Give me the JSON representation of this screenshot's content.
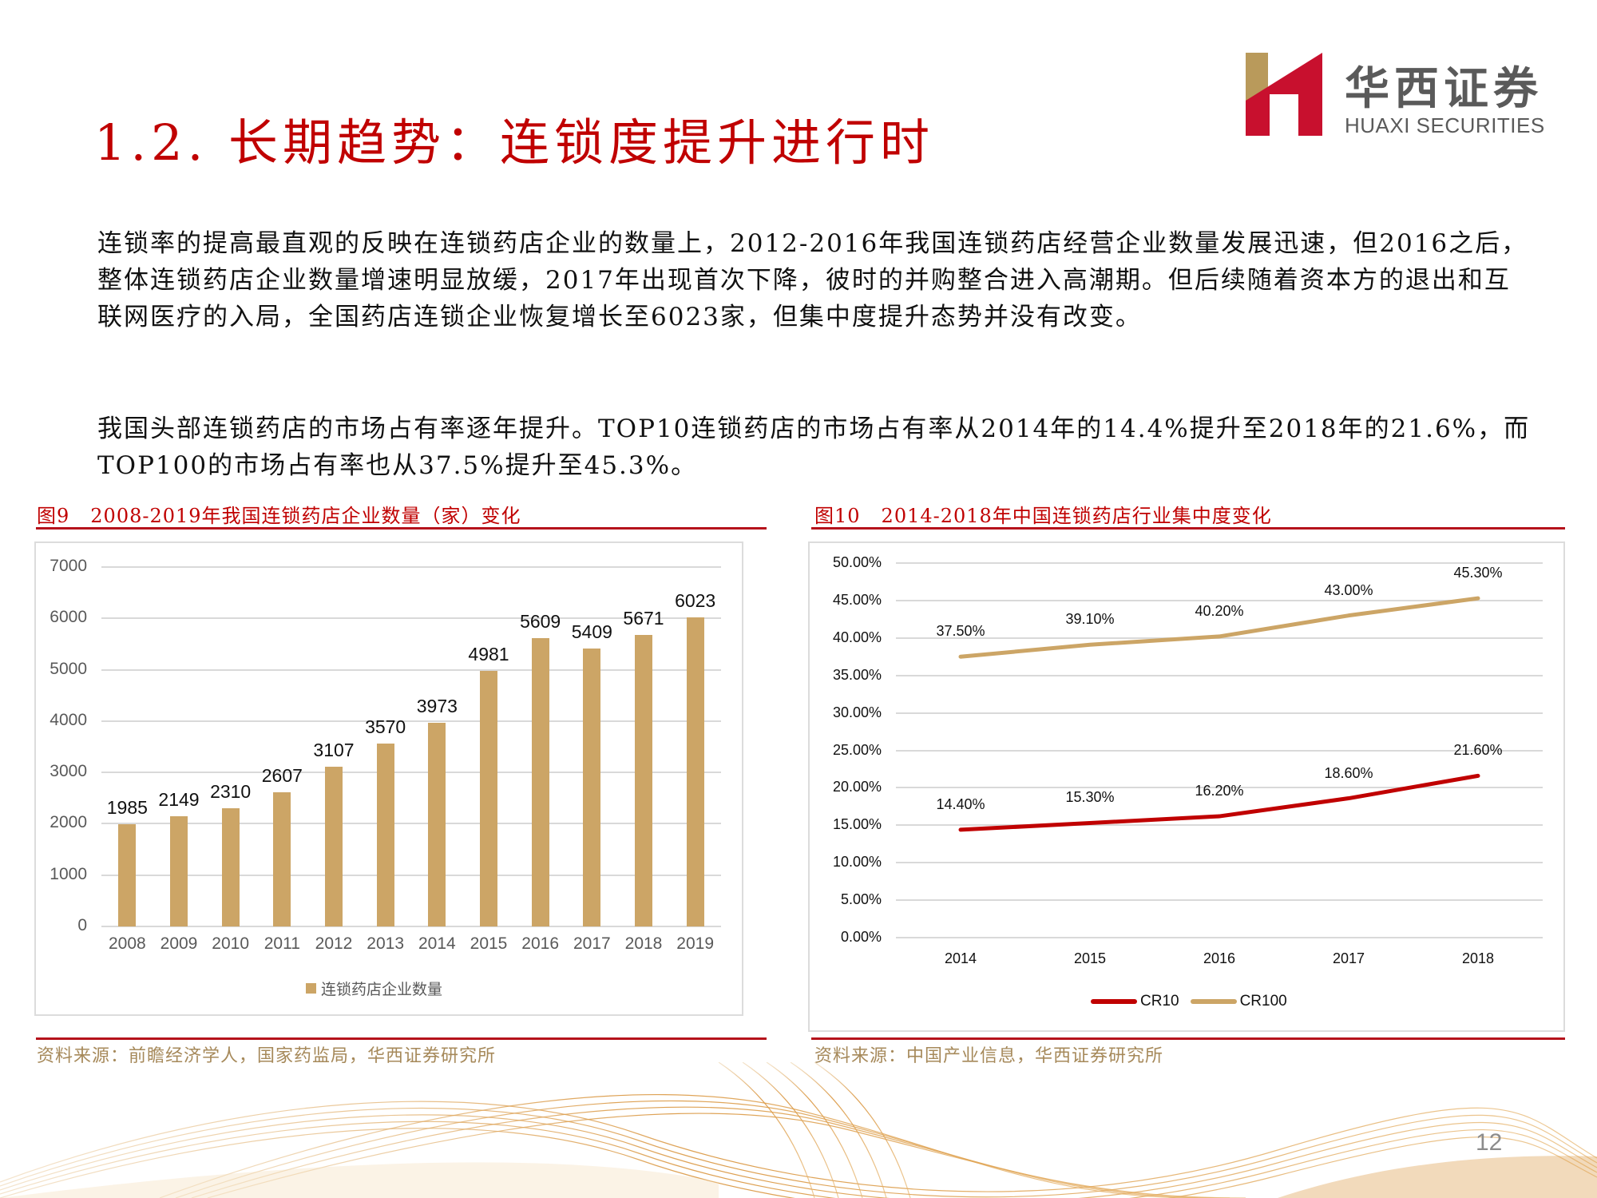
{
  "slide": {
    "title": "1.2. 长期趋势：连锁度提升进行时",
    "page_number": "12"
  },
  "logo": {
    "name_cn": "华西证券",
    "name_en": "HUAXI SECURITIES",
    "colors": {
      "gold": "#B99A5B",
      "red": "#C8102E",
      "text": "#5A5A5A"
    }
  },
  "body": {
    "paragraph_1": "连锁率的提高最直观的反映在连锁药店企业的数量上，2012-2016年我国连锁药店经营企业数量发展迅速，但2016之后，整体连锁药店企业数量增速明显放缓，2017年出现首次下降，彼时的并购整合进入高潮期。但后续随着资本方的退出和互联网医疗的入局，全国药店连锁企业恢复增长至6023家，但集中度提升态势并没有改变。",
    "paragraph_2": "我国头部连锁药店的市场占有率逐年提升。TOP10连锁药店的市场占有率从2014年的14.4%提升至2018年的21.6%，而TOP100的市场占有率也从37.5%提升至45.3%。"
  },
  "figures": [
    {
      "number": "图9",
      "title": "2008-2019年我国连锁药店企业数量（家）变化",
      "source": "资料来源：前瞻经济学人，国家药监局，华西证券研究所"
    },
    {
      "number": "图10",
      "title": "2014-2018年中国连锁药店行业集中度变化",
      "source": "资料来源：中国产业信息，华西证券研究所"
    }
  ],
  "colors": {
    "accent_red": "#C00000",
    "rule_red": "#B5121B",
    "bar_gold": "#CCA566",
    "cr10_red": "#C00000",
    "cr100_gold": "#CCA566",
    "source_text": "#A6895A",
    "grid": "#D9D9D9"
  },
  "chart_data": [
    {
      "type": "bar",
      "title": "2008-2019年我国连锁药店企业数量（家）变化",
      "categories": [
        "2008",
        "2009",
        "2010",
        "2011",
        "2012",
        "2013",
        "2014",
        "2015",
        "2016",
        "2017",
        "2018",
        "2019"
      ],
      "series": [
        {
          "name": "连锁药店企业数量",
          "values": [
            1985,
            2149,
            2310,
            2607,
            3107,
            3570,
            3973,
            4981,
            5609,
            5409,
            5671,
            6023
          ]
        }
      ],
      "y_ticks": [
        "0",
        "1000",
        "2000",
        "3000",
        "4000",
        "5000",
        "6000",
        "7000"
      ],
      "ylim": [
        0,
        7000
      ],
      "xlabel": "",
      "ylabel": "",
      "grid": true,
      "legend_position": "bottom",
      "data_labels": true
    },
    {
      "type": "line",
      "title": "2014-2018年中国连锁药店行业集中度变化",
      "categories": [
        "2014",
        "2015",
        "2016",
        "2017",
        "2018"
      ],
      "series": [
        {
          "name": "CR10",
          "values": [
            14.4,
            15.3,
            16.2,
            18.6,
            21.6
          ],
          "labels": [
            "14.40%",
            "15.30%",
            "16.20%",
            "18.60%",
            "21.60%"
          ]
        },
        {
          "name": "CR100",
          "values": [
            37.5,
            39.1,
            40.2,
            43.0,
            45.3
          ],
          "labels": [
            "37.50%",
            "39.10%",
            "40.20%",
            "43.00%",
            "45.30%"
          ]
        }
      ],
      "y_ticks": [
        "0.00%",
        "5.00%",
        "10.00%",
        "15.00%",
        "20.00%",
        "25.00%",
        "30.00%",
        "35.00%",
        "40.00%",
        "45.00%",
        "50.00%"
      ],
      "ylim": [
        0,
        50
      ],
      "xlabel": "",
      "ylabel": "",
      "grid": true,
      "legend_position": "bottom",
      "data_labels": true
    }
  ]
}
